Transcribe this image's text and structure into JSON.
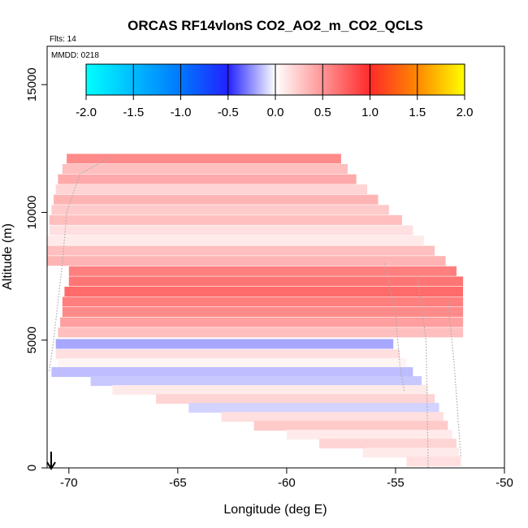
{
  "chart_data": {
    "type": "heatmap",
    "title": "ORCAS RF14vlonS CO2_AO2_m_CO2_QCLS",
    "flights_label": "Flts: 14",
    "date_label": "MMDD: 0218",
    "xlabel": "Longitude (deg E)",
    "ylabel": "Altitude (m)",
    "xlim": [
      -71,
      -50
    ],
    "ylim": [
      0,
      16500
    ],
    "xticks": [
      -70,
      -65,
      -60,
      -55,
      -50
    ],
    "yticks": [
      0,
      5000,
      10000,
      15000
    ],
    "colorbar": {
      "range": [
        -2.0,
        2.0
      ],
      "ticks": [
        "-2.0",
        "-1.5",
        "-1.0",
        "-0.5",
        "0.0",
        "0.5",
        "1.0",
        "1.5",
        "2.0"
      ],
      "colors": [
        "#00ffff",
        "#0044ff",
        "#ffffff",
        "#ff3333",
        "#ffff00"
      ]
    },
    "bands": [
      {
        "alt": 12100,
        "lon_start": -70.1,
        "lon_end": -57.5,
        "value": 0.55
      },
      {
        "alt": 11700,
        "lon_start": -70.3,
        "lon_end": -57.2,
        "value": 0.3
      },
      {
        "alt": 11300,
        "lon_start": -70.5,
        "lon_end": -56.8,
        "value": 0.4
      },
      {
        "alt": 10900,
        "lon_start": -70.6,
        "lon_end": -56.3,
        "value": 0.2
      },
      {
        "alt": 10500,
        "lon_start": -70.7,
        "lon_end": -55.8,
        "value": 0.35
      },
      {
        "alt": 10100,
        "lon_start": -70.8,
        "lon_end": -55.3,
        "value": 0.25
      },
      {
        "alt": 9700,
        "lon_start": -70.9,
        "lon_end": -54.7,
        "value": 0.3
      },
      {
        "alt": 9300,
        "lon_start": -70.9,
        "lon_end": -54.2,
        "value": 0.15
      },
      {
        "alt": 8900,
        "lon_start": -71.0,
        "lon_end": -53.7,
        "value": 0.1
      },
      {
        "alt": 8500,
        "lon_start": -71.0,
        "lon_end": -53.2,
        "value": 0.3
      },
      {
        "alt": 8100,
        "lon_start": -71.0,
        "lon_end": -52.7,
        "value": 0.35
      },
      {
        "alt": 7700,
        "lon_start": -70.0,
        "lon_end": -52.2,
        "value": 0.6
      },
      {
        "alt": 7300,
        "lon_start": -70.0,
        "lon_end": -51.9,
        "value": 0.65
      },
      {
        "alt": 6900,
        "lon_start": -70.2,
        "lon_end": -51.9,
        "value": 0.7
      },
      {
        "alt": 6500,
        "lon_start": -70.3,
        "lon_end": -51.9,
        "value": 0.6
      },
      {
        "alt": 6100,
        "lon_start": -70.3,
        "lon_end": -51.9,
        "value": 0.55
      },
      {
        "alt": 5700,
        "lon_start": -70.4,
        "lon_end": -51.9,
        "value": 0.45
      },
      {
        "alt": 5300,
        "lon_start": -70.5,
        "lon_end": -51.9,
        "value": 0.3
      },
      {
        "alt": 4850,
        "lon_start": -70.6,
        "lon_end": -55.1,
        "value": -0.4
      },
      {
        "alt": 4450,
        "lon_start": -70.6,
        "lon_end": -54.8,
        "value": 0.15
      },
      {
        "alt": 4100,
        "lon_start": -70.5,
        "lon_end": -54.5,
        "value": 0.05
      },
      {
        "alt": 3750,
        "lon_start": -70.8,
        "lon_end": -54.2,
        "value": -0.3
      },
      {
        "alt": 3400,
        "lon_start": -69.0,
        "lon_end": -53.8,
        "value": -0.25
      },
      {
        "alt": 3050,
        "lon_start": -68.0,
        "lon_end": -53.5,
        "value": 0.1
      },
      {
        "alt": 2700,
        "lon_start": -66.0,
        "lon_end": -53.2,
        "value": 0.2
      },
      {
        "alt": 2350,
        "lon_start": -64.5,
        "lon_end": -53.0,
        "value": -0.2
      },
      {
        "alt": 2000,
        "lon_start": -63.0,
        "lon_end": -52.8,
        "value": 0.15
      },
      {
        "alt": 1650,
        "lon_start": -61.5,
        "lon_end": -52.6,
        "value": 0.25
      },
      {
        "alt": 1300,
        "lon_start": -60.0,
        "lon_end": -52.4,
        "value": 0.1
      },
      {
        "alt": 950,
        "lon_start": -58.5,
        "lon_end": -52.2,
        "value": 0.2
      },
      {
        "alt": 600,
        "lon_start": -56.5,
        "lon_end": -52.1,
        "value": 0.1
      },
      {
        "alt": 250,
        "lon_start": -54.5,
        "lon_end": -52.0,
        "value": 0.15
      }
    ]
  }
}
